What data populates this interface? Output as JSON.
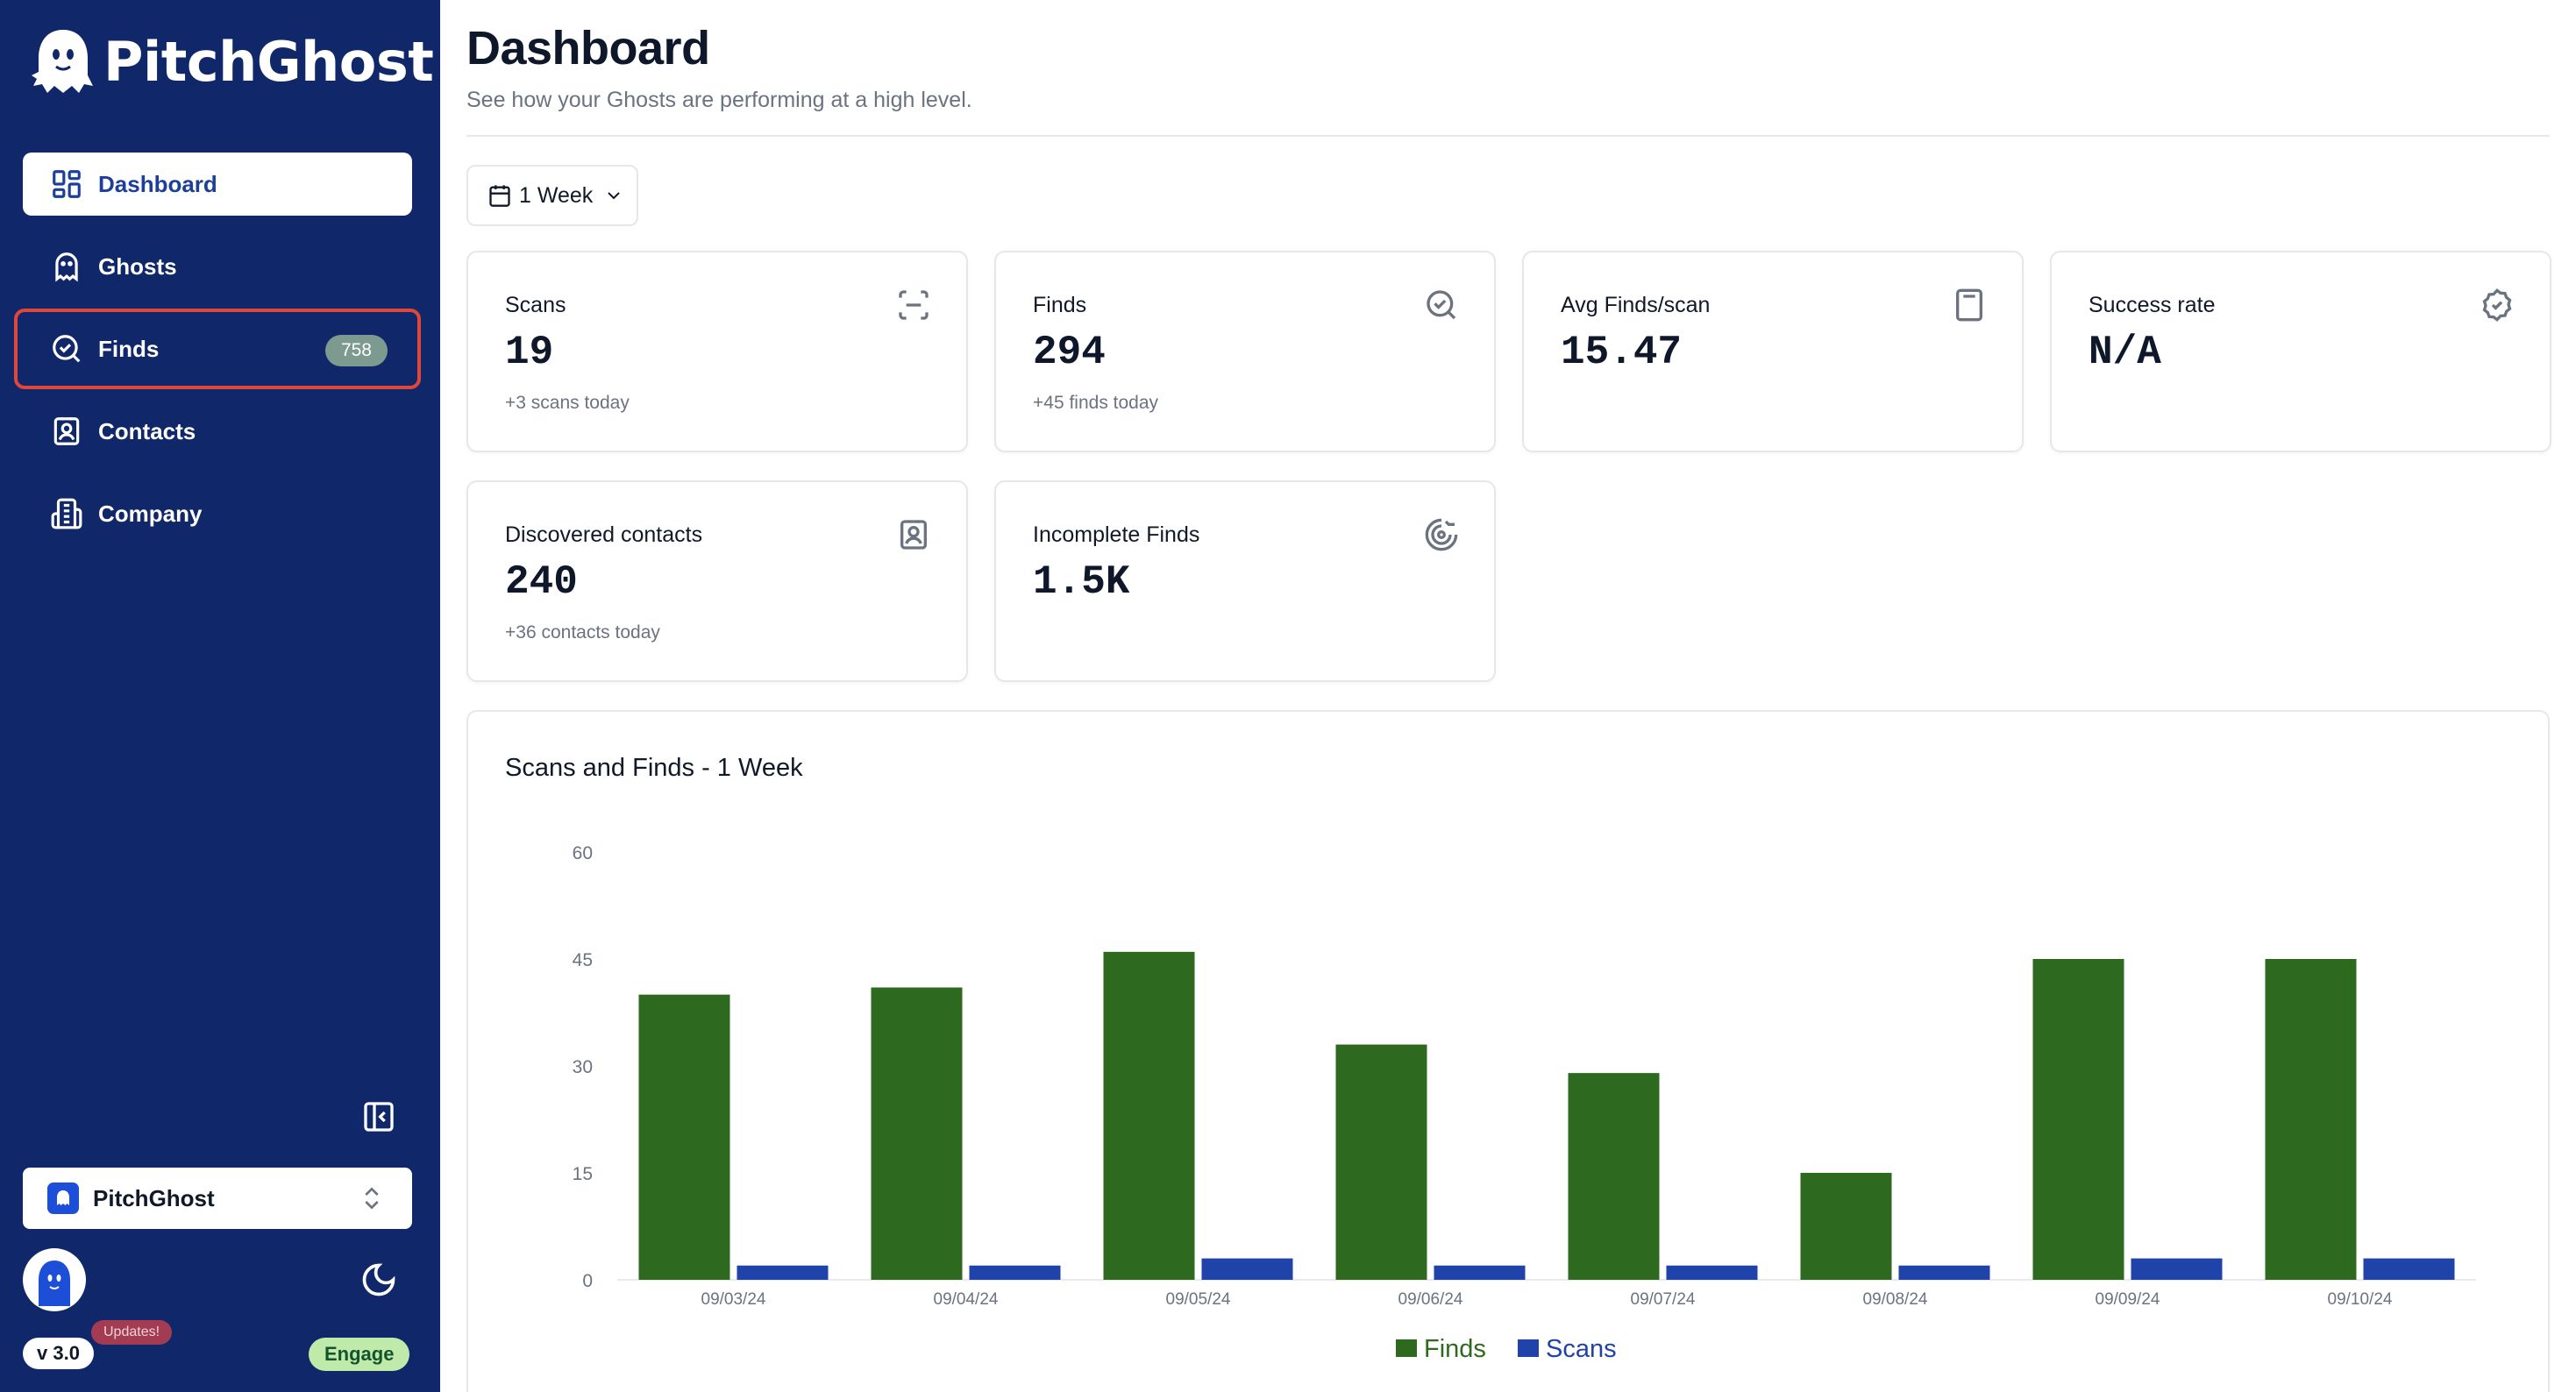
{
  "brand": {
    "name": "PitchGhost"
  },
  "sidebar": {
    "items": [
      {
        "label": "Dashboard",
        "icon": "dashboard-icon",
        "active": true
      },
      {
        "label": "Ghosts",
        "icon": "ghost-icon"
      },
      {
        "label": "Finds",
        "icon": "search-check-icon",
        "badge": "758"
      },
      {
        "label": "Contacts",
        "icon": "contact-icon"
      },
      {
        "label": "Company",
        "icon": "building-icon"
      }
    ],
    "org": {
      "name": "PitchGhost"
    },
    "version": "v 3.0",
    "updates_label": "Updates!",
    "engage_label": "Engage"
  },
  "header": {
    "title": "Dashboard",
    "subtitle": "See how your Ghosts are performing at a high level.",
    "range": "1 Week"
  },
  "cards": [
    {
      "label": "Scans",
      "value": "19",
      "sub": "+3 scans today",
      "icon": "scan-icon"
    },
    {
      "label": "Finds",
      "value": "294",
      "sub": "+45 finds today",
      "icon": "search-check-icon"
    },
    {
      "label": "Avg Finds/scan",
      "value": "15.47",
      "sub": "",
      "icon": "calculator-icon"
    },
    {
      "label": "Success rate",
      "value": "N/A",
      "sub": "",
      "icon": "badge-check-icon"
    },
    {
      "label": "Discovered contacts",
      "value": "240",
      "sub": "+36 contacts today",
      "icon": "contact-icon"
    },
    {
      "label": "Incomplete Finds",
      "value": "1.5K",
      "sub": "",
      "icon": "progress-icon"
    }
  ],
  "colors": {
    "finds": "#2d6a1f",
    "scans": "#1f43a8",
    "sidebar": "#10286a"
  },
  "chart_data": {
    "type": "bar",
    "title": "Scans and Finds - 1 Week",
    "categories": [
      "09/03/24",
      "09/04/24",
      "09/05/24",
      "09/06/24",
      "09/07/24",
      "09/08/24",
      "09/09/24",
      "09/10/24"
    ],
    "series": [
      {
        "name": "Finds",
        "values": [
          40,
          41,
          46,
          33,
          29,
          15,
          45,
          45
        ]
      },
      {
        "name": "Scans",
        "values": [
          2,
          2,
          3,
          2,
          2,
          2,
          3,
          3
        ]
      }
    ],
    "yticks": [
      "0",
      "15",
      "30",
      "45",
      "60"
    ],
    "ylim": [
      0,
      60
    ],
    "legend": "bottom"
  }
}
